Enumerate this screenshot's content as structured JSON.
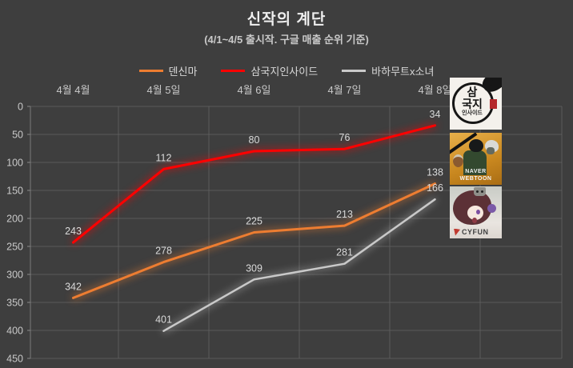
{
  "page": {
    "background": "#3e3e3e"
  },
  "header": {
    "title": "신작의 계단",
    "subtitle": "(4/1~4/5 출시작. 구글 매출 순위 기준)"
  },
  "chart_data": {
    "type": "line",
    "title": "신작의 계단",
    "subtitle": "(4/1~4/5 출시작. 구글 매출 순위 기준)",
    "categories": [
      "4월 4월",
      "4월 5일",
      "4월 6일",
      "4월 7일",
      "4월 8일"
    ],
    "series": [
      {
        "name": "덴신마",
        "color": "#ED7D31",
        "values": [
          342,
          278,
          225,
          213,
          138
        ]
      },
      {
        "name": "삼국지인사이드",
        "color": "#FF0000",
        "values": [
          243,
          112,
          80,
          76,
          34
        ]
      },
      {
        "name": "바하무트x소녀",
        "color": "#C9C9C9",
        "values": [
          null,
          401,
          309,
          281,
          166
        ]
      }
    ],
    "y_axis": {
      "ticks": [
        0,
        50,
        100,
        150,
        200,
        250,
        300,
        350,
        400,
        450
      ],
      "min": 0,
      "max": 450,
      "inverted": true
    },
    "legend_position": "top",
    "grid": true,
    "data_labels": true,
    "colors": {
      "background": "#3e3e3e",
      "gridline": "#5b5b5b",
      "axis_text": "#c9c9c9",
      "label_text": "#dadada"
    }
  },
  "thumbnails": [
    {
      "id": "samgukji-inside",
      "lines": [
        "삼",
        "국지",
        "인사이드"
      ]
    },
    {
      "id": "naver-webtoon",
      "caption": "NAVER WEBTOON"
    },
    {
      "id": "cyfun",
      "caption": "CYFUN"
    }
  ]
}
